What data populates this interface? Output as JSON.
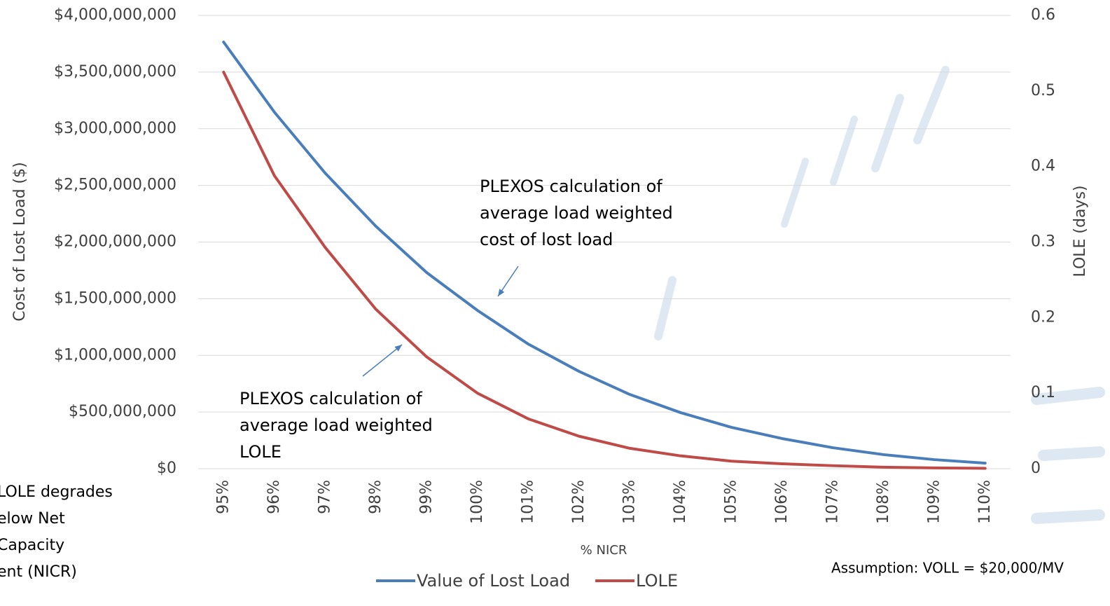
{
  "chart_data": {
    "type": "line",
    "y_label": "Cost of Lost Load ($)",
    "y2_label": "LOLE (days)",
    "x_label": "% NICR",
    "categories": [
      "95%",
      "96%",
      "97%",
      "98%",
      "99%",
      "100%",
      "101%",
      "102%",
      "103%",
      "104%",
      "105%",
      "106%",
      "107%",
      "108%",
      "109%",
      "110%"
    ],
    "series": [
      {
        "name": "Value of Lost Load",
        "color": "#4a7ebb",
        "values": [
          3765000000,
          3147000000,
          2609000000,
          2139000000,
          1731000000,
          1397000000,
          1100000000,
          859000000,
          655000000,
          495000000,
          365000000,
          266000000,
          185000000,
          124000000,
          80000000,
          49000000
        ]
      },
      {
        "name": "LOLE",
        "color": "#be4b48",
        "axis": "y2",
        "values": [
          0.525,
          0.388,
          0.293,
          0.211,
          0.148,
          0.1,
          0.066,
          0.043,
          0.027,
          0.017,
          0.01,
          0.0065,
          0.004,
          0.002,
          0.001,
          0.0005
        ]
      }
    ],
    "ylim": [
      0,
      4000000000
    ],
    "yticks": [
      {
        "value": 0,
        "label": "$0"
      },
      {
        "value": 500000000,
        "label": "$500,000,000"
      },
      {
        "value": 1000000000,
        "label": "$1,000,000,000"
      },
      {
        "value": 1500000000,
        "label": "$1,500,000,000"
      },
      {
        "value": 2000000000,
        "label": "$2,000,000,000"
      },
      {
        "value": 2500000000,
        "label": "$2,500,000,000"
      },
      {
        "value": 3000000000,
        "label": "$3,000,000,000"
      },
      {
        "value": 3500000000,
        "label": "$3,500,000,000"
      },
      {
        "value": 4000000000,
        "label": "$4,000,000,000"
      }
    ],
    "y2lim": [
      0,
      0.6
    ],
    "y2ticks": [
      0,
      0.1,
      0.2,
      0.3,
      0.4,
      0.5,
      0.6
    ],
    "grid": true,
    "legend": "bottom",
    "annotations": [
      [
        "PLEXOS calculation of",
        "average load weighted",
        "cost of lost load"
      ],
      [
        "PLEXOS calculation of",
        "average load weighted",
        "LOLE"
      ],
      [
        "LOLE degrades",
        "elow Net",
        "Capacity",
        "ent (NICR)"
      ],
      [
        "Assumption: VOLL = $20,000/MV"
      ]
    ]
  }
}
